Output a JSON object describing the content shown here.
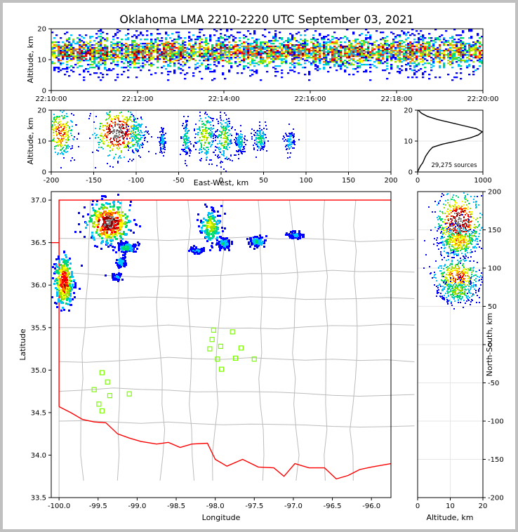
{
  "figure": {
    "title": "Oklahoma LMA 2210-2220 UTC September 03, 2021"
  },
  "palette": [
    "#ffffff",
    "#0000ff",
    "#00c0ff",
    "#00d870",
    "#9be000",
    "#ffff00",
    "#ff8000",
    "#ff0000",
    "#8b0000",
    "#808080"
  ],
  "map_colors": {
    "state_border": "#ff0000",
    "county_lines": "#bcbcbc",
    "stations": "#7cfc00"
  },
  "chart_data": [
    {
      "id": "time-height",
      "type": "heatmap",
      "title": "Oklahoma LMA 2210-2220 UTC September 03, 2021",
      "xlabel": "",
      "ylabel": "Altitude, km",
      "xlim": [
        "22:10:00",
        "22:20:00"
      ],
      "ylim": [
        0,
        20
      ],
      "x_ticks": [
        "22:10:00",
        "22:12:00",
        "22:14:00",
        "22:16:00",
        "22:18:00",
        "22:20:00"
      ],
      "y_ticks": [
        0,
        10,
        20
      ],
      "density": {
        "band_center_km": 12.5,
        "band_halfwidth_km": 4,
        "band_extent_km": [
          3,
          20
        ]
      }
    },
    {
      "id": "ew-height",
      "type": "heatmap",
      "xlabel": "East-West, km",
      "ylabel": "Altitude, km",
      "xlim": [
        -200,
        200
      ],
      "ylim": [
        0,
        20
      ],
      "x_ticks": [
        -200,
        -150,
        -100,
        -50,
        0,
        50,
        100,
        150,
        200
      ],
      "y_ticks": [
        0,
        10,
        20
      ],
      "clusters": [
        {
          "x": -190,
          "z": 13,
          "sx": 8,
          "sz": 4,
          "w": 0.7
        },
        {
          "x": -122,
          "z": 13,
          "sx": 14,
          "sz": 4,
          "w": 1.0
        },
        {
          "x": -100,
          "z": 12,
          "sx": 5,
          "sz": 3,
          "w": 0.3
        },
        {
          "x": -70,
          "z": 10,
          "sx": 2,
          "sz": 2,
          "w": 0.2
        },
        {
          "x": -42,
          "z": 11,
          "sx": 3,
          "sz": 3,
          "w": 0.25
        },
        {
          "x": -20,
          "z": 12,
          "sx": 6,
          "sz": 4,
          "w": 0.45
        },
        {
          "x": 3,
          "z": 11,
          "sx": 5,
          "sz": 4,
          "w": 0.4
        },
        {
          "x": 22,
          "z": 10,
          "sx": 3,
          "sz": 2,
          "w": 0.25
        },
        {
          "x": 45,
          "z": 11,
          "sx": 4,
          "sz": 2,
          "w": 0.3
        },
        {
          "x": 80,
          "z": 10,
          "sx": 3,
          "sz": 2,
          "w": 0.2
        }
      ]
    },
    {
      "id": "altitude-histogram",
      "type": "line",
      "xlim": [
        0,
        1000
      ],
      "ylim": [
        0,
        20
      ],
      "x_ticks": [
        0,
        1000
      ],
      "y_ticks": [
        0,
        10,
        20
      ],
      "annotation": "29,275 sources",
      "profile": {
        "z": [
          0,
          1,
          2,
          3,
          4,
          5,
          6,
          7,
          8,
          9,
          10,
          11,
          12,
          13,
          14,
          15,
          16,
          17,
          18,
          19,
          20
        ],
        "count": [
          0,
          20,
          45,
          80,
          100,
          120,
          150,
          185,
          230,
          380,
          600,
          800,
          930,
          990,
          900,
          700,
          500,
          300,
          150,
          60,
          10
        ]
      }
    },
    {
      "id": "plan-view",
      "type": "scatter",
      "xlabel": "Longitude",
      "ylabel": "Latitude",
      "xlim": [
        -100.1,
        -95.75
      ],
      "ylim": [
        33.5,
        37.1
      ],
      "x_ticks": [
        -100.0,
        -99.5,
        -99.0,
        -98.5,
        -98.0,
        -97.5,
        -97.0,
        -96.5,
        -96.0
      ],
      "y_ticks": [
        33.5,
        34.0,
        34.5,
        35.0,
        35.5,
        36.0,
        36.5,
        37.0
      ],
      "x_tick_labels": [
        "-100.0",
        "-99.5",
        "-99.0",
        "-98.5",
        "-98.0",
        "-97.5",
        "-97.0",
        "-96.5",
        "-96.0"
      ],
      "y_tick_labels": [
        "33.5",
        "34.0",
        "34.5",
        "35.0",
        "35.5",
        "36.0",
        "36.5",
        "37.0"
      ],
      "stations": [
        {
          "lon": -98.02,
          "lat": 35.47
        },
        {
          "lon": -97.78,
          "lat": 35.45
        },
        {
          "lon": -98.04,
          "lat": 35.36
        },
        {
          "lon": -97.93,
          "lat": 35.28
        },
        {
          "lon": -98.07,
          "lat": 35.25
        },
        {
          "lon": -97.67,
          "lat": 35.26
        },
        {
          "lon": -97.97,
          "lat": 35.13
        },
        {
          "lon": -97.74,
          "lat": 35.14
        },
        {
          "lon": -97.5,
          "lat": 35.13
        },
        {
          "lon": -97.92,
          "lat": 35.01
        },
        {
          "lon": -99.45,
          "lat": 34.97
        },
        {
          "lon": -99.38,
          "lat": 34.86
        },
        {
          "lon": -99.55,
          "lat": 34.77
        },
        {
          "lon": -99.35,
          "lat": 34.7
        },
        {
          "lon": -99.1,
          "lat": 34.72
        },
        {
          "lon": -99.49,
          "lat": 34.6
        },
        {
          "lon": -99.45,
          "lat": 34.52
        }
      ],
      "clusters": [
        {
          "lon": -99.95,
          "lat": 36.05,
          "sx": 0.06,
          "sy": 0.15,
          "w": 0.8
        },
        {
          "lon": -99.37,
          "lat": 36.75,
          "sx": 0.14,
          "sy": 0.12,
          "w": 1.0
        },
        {
          "lon": -99.22,
          "lat": 36.28,
          "sx": 0.03,
          "sy": 0.03,
          "w": 0.2
        },
        {
          "lon": -99.15,
          "lat": 36.45,
          "sx": 0.06,
          "sy": 0.03,
          "w": 0.3
        },
        {
          "lon": -98.07,
          "lat": 36.7,
          "sx": 0.07,
          "sy": 0.1,
          "w": 0.45
        },
        {
          "lon": -97.9,
          "lat": 36.5,
          "sx": 0.04,
          "sy": 0.03,
          "w": 0.25
        },
        {
          "lon": -97.47,
          "lat": 36.52,
          "sx": 0.06,
          "sy": 0.03,
          "w": 0.25
        },
        {
          "lon": -96.98,
          "lat": 36.6,
          "sx": 0.05,
          "sy": 0.02,
          "w": 0.15
        },
        {
          "lon": -98.25,
          "lat": 36.42,
          "sx": 0.05,
          "sy": 0.02,
          "w": 0.15
        },
        {
          "lon": -99.27,
          "lat": 36.11,
          "sx": 0.03,
          "sy": 0.02,
          "w": 0.15
        }
      ]
    },
    {
      "id": "height-ns",
      "type": "heatmap",
      "xlabel": "Altitude, km",
      "ylabel": "North-South, km",
      "xlim": [
        0,
        20
      ],
      "ylim": [
        -200,
        200
      ],
      "x_ticks": [
        0,
        10,
        20
      ],
      "y_ticks": [
        -200,
        -150,
        -100,
        -50,
        0,
        50,
        100,
        150,
        200
      ],
      "clusters": [
        {
          "z": 12.5,
          "y": 160,
          "sz": 3.5,
          "sy": 20,
          "w": 1.0
        },
        {
          "z": 12.5,
          "y": 135,
          "sz": 3,
          "sy": 10,
          "w": 0.6
        },
        {
          "z": 12,
          "y": 90,
          "sz": 3.5,
          "sy": 12,
          "w": 0.7
        },
        {
          "z": 12,
          "y": 70,
          "sz": 3,
          "sy": 8,
          "w": 0.4
        }
      ]
    }
  ]
}
